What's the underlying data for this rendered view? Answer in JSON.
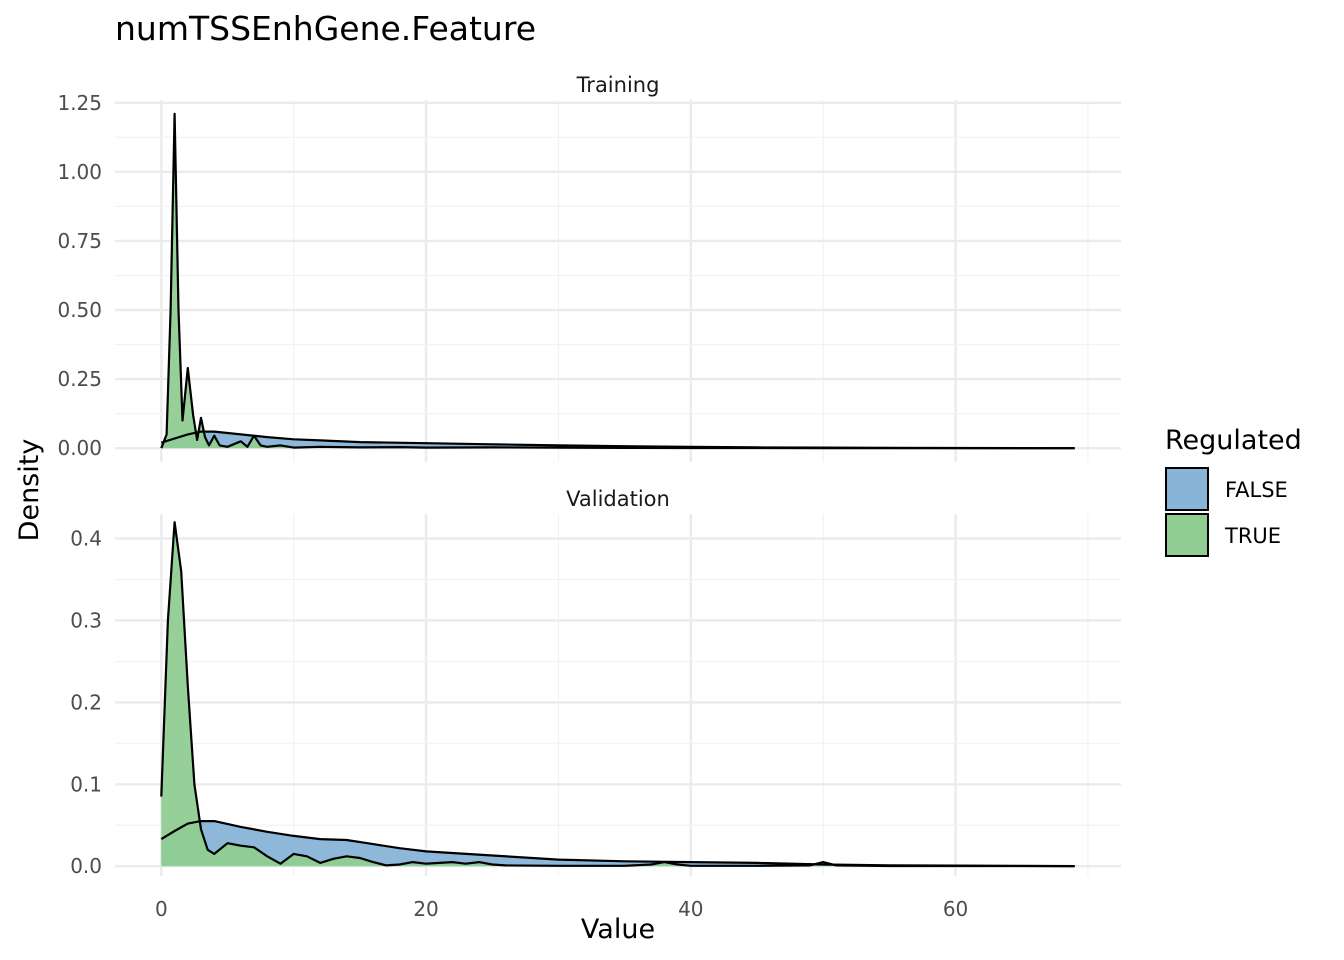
{
  "chart_data": {
    "type": "area",
    "title": "numTSSEnhGene.Feature",
    "xlabel": "Value",
    "ylabel": "Density",
    "legend": {
      "title": "Regulated",
      "placement": "right",
      "entries": [
        {
          "name": "FALSE",
          "color": "#88b4d8"
        },
        {
          "name": "TRUE",
          "color": "#90cd92"
        }
      ]
    },
    "xlim": [
      -3.5,
      72.5
    ],
    "xticks": [
      0,
      20,
      40,
      60
    ],
    "grid": true,
    "panels": [
      {
        "name": "Training",
        "ylim": [
          -0.05,
          1.26
        ],
        "yticks": [
          0,
          0.25,
          0.5,
          0.75,
          1.0,
          1.25
        ],
        "ytick_labels": [
          "0.00",
          "0.25",
          "0.50",
          "0.75",
          "1.00",
          "1.25"
        ],
        "series": [
          {
            "name": "FALSE",
            "color": "#88b4d8",
            "points": [
              [
                0,
                0.02
              ],
              [
                1,
                0.035
              ],
              [
                2,
                0.05
              ],
              [
                3,
                0.06
              ],
              [
                4,
                0.06
              ],
              [
                6,
                0.05
              ],
              [
                8,
                0.04
              ],
              [
                10,
                0.032
              ],
              [
                12,
                0.028
              ],
              [
                15,
                0.022
              ],
              [
                20,
                0.018
              ],
              [
                25,
                0.014
              ],
              [
                30,
                0.01
              ],
              [
                35,
                0.007
              ],
              [
                40,
                0.005
              ],
              [
                45,
                0.003
              ],
              [
                50,
                0.002
              ],
              [
                55,
                0.001
              ],
              [
                60,
                0.0005
              ],
              [
                65,
                0.0002
              ],
              [
                69,
                0.0001
              ]
            ]
          },
          {
            "name": "TRUE",
            "color": "#90cd92",
            "points": [
              [
                0,
                0
              ],
              [
                0.4,
                0.05
              ],
              [
                0.7,
                0.5
              ],
              [
                1,
                1.21
              ],
              [
                1.3,
                0.5
              ],
              [
                1.6,
                0.1
              ],
              [
                2,
                0.29
              ],
              [
                2.4,
                0.12
              ],
              [
                2.7,
                0.03
              ],
              [
                3,
                0.11
              ],
              [
                3.3,
                0.04
              ],
              [
                3.6,
                0.01
              ],
              [
                4,
                0.045
              ],
              [
                4.4,
                0.01
              ],
              [
                5,
                0.005
              ],
              [
                6,
                0.025
              ],
              [
                6.5,
                0.005
              ],
              [
                7,
                0.045
              ],
              [
                7.5,
                0.01
              ],
              [
                8,
                0.005
              ],
              [
                9,
                0.01
              ],
              [
                10,
                0.002
              ],
              [
                12,
                0.005
              ],
              [
                15,
                0.003
              ],
              [
                18,
                0.004
              ],
              [
                20,
                0.002
              ],
              [
                25,
                0.003
              ],
              [
                30,
                0.002
              ],
              [
                35,
                0.001
              ],
              [
                40,
                0.0005
              ],
              [
                50,
                0.0002
              ],
              [
                69,
                0.0001
              ]
            ]
          }
        ]
      },
      {
        "name": "Validation",
        "ylim": [
          -0.012,
          0.43
        ],
        "yticks": [
          0,
          0.1,
          0.2,
          0.3,
          0.4
        ],
        "ytick_labels": [
          "0.0",
          "0.1",
          "0.2",
          "0.3",
          "0.4"
        ],
        "series": [
          {
            "name": "FALSE",
            "color": "#88b4d8",
            "points": [
              [
                0,
                0.033
              ],
              [
                1,
                0.043
              ],
              [
                2,
                0.052
              ],
              [
                3,
                0.055
              ],
              [
                4,
                0.055
              ],
              [
                6,
                0.048
              ],
              [
                8,
                0.042
              ],
              [
                10,
                0.037
              ],
              [
                12,
                0.033
              ],
              [
                14,
                0.032
              ],
              [
                16,
                0.027
              ],
              [
                18,
                0.022
              ],
              [
                20,
                0.018
              ],
              [
                25,
                0.013
              ],
              [
                30,
                0.008
              ],
              [
                35,
                0.006
              ],
              [
                40,
                0.005
              ],
              [
                45,
                0.004
              ],
              [
                50,
                0.002
              ],
              [
                55,
                0.001
              ],
              [
                60,
                0.0007
              ],
              [
                65,
                0.0003
              ],
              [
                69,
                0.0001
              ]
            ]
          },
          {
            "name": "TRUE",
            "color": "#90cd92",
            "points": [
              [
                0,
                0.085
              ],
              [
                0.5,
                0.3
              ],
              [
                1,
                0.42
              ],
              [
                1.5,
                0.36
              ],
              [
                2,
                0.22
              ],
              [
                2.5,
                0.1
              ],
              [
                3,
                0.045
              ],
              [
                3.5,
                0.02
              ],
              [
                4,
                0.015
              ],
              [
                5,
                0.028
              ],
              [
                6,
                0.025
              ],
              [
                7,
                0.023
              ],
              [
                8,
                0.012
              ],
              [
                9,
                0.003
              ],
              [
                10,
                0.015
              ],
              [
                11,
                0.012
              ],
              [
                12,
                0.004
              ],
              [
                13,
                0.009
              ],
              [
                14,
                0.012
              ],
              [
                15,
                0.01
              ],
              [
                16,
                0.005
              ],
              [
                17,
                0.001
              ],
              [
                18,
                0.002
              ],
              [
                19,
                0.005
              ],
              [
                20,
                0.003
              ],
              [
                21,
                0.004
              ],
              [
                22,
                0.005
              ],
              [
                23,
                0.003
              ],
              [
                24,
                0.005
              ],
              [
                25,
                0.002
              ],
              [
                26,
                0.001
              ],
              [
                30,
                0.0005
              ],
              [
                35,
                0.0005
              ],
              [
                37,
                0.002
              ],
              [
                38,
                0.005
              ],
              [
                39,
                0.002
              ],
              [
                40,
                0.0005
              ],
              [
                45,
                0.0005
              ],
              [
                49,
                0.001
              ],
              [
                50,
                0.005
              ],
              [
                51,
                0.001
              ],
              [
                55,
                0.0002
              ],
              [
                69,
                0.0001
              ]
            ]
          }
        ]
      }
    ]
  }
}
